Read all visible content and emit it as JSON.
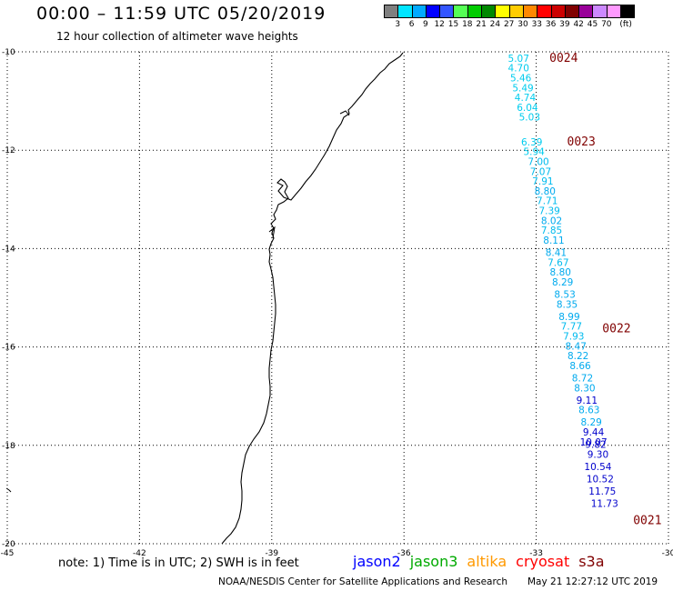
{
  "title": "00:00 – 11:59 UTC 05/20/2019",
  "subtitle": "12 hour collection of altimeter wave heights",
  "colorbar": {
    "colors": [
      "#7f7f7f",
      "#00e5ff",
      "#00aaff",
      "#0000ff",
      "#3355ff",
      "#55ff55",
      "#00cc00",
      "#008800",
      "#ffff00",
      "#ffcc00",
      "#ff8800",
      "#ff0000",
      "#cc0000",
      "#800000",
      "#990099",
      "#cc88ff",
      "#ff99ff",
      "#000000"
    ],
    "ticks": [
      "3",
      "6",
      "9",
      "12",
      "15",
      "18",
      "21",
      "24",
      "27",
      "30",
      "33",
      "36",
      "39",
      "42",
      "45",
      "70",
      "(ft)"
    ]
  },
  "map": {
    "lat_ticks": [
      "-10",
      "-12",
      "-14",
      "-16",
      "-18",
      "-20"
    ],
    "lon_ticks": [
      "-45",
      "-42",
      "-39",
      "-36",
      "-33",
      "-30"
    ],
    "lon_range": [
      -45,
      -30
    ],
    "lat_range": [
      -20,
      -10
    ],
    "gridlines": "dotted"
  },
  "pass_labels": [
    {
      "text": "0024",
      "lon": -32.7,
      "lat": -10.2
    },
    {
      "text": "0023",
      "lon": -32.3,
      "lat": -11.9
    },
    {
      "text": "0022",
      "lon": -31.5,
      "lat": -15.7
    },
    {
      "text": "0021",
      "lon": -30.8,
      "lat": -19.6
    }
  ],
  "swh_points": [
    {
      "v": "5.07",
      "lon": -33.4,
      "lat": -10.2,
      "c": "#00ccee"
    },
    {
      "v": "4.70",
      "lon": -33.4,
      "lat": -10.4,
      "c": "#00ccee"
    },
    {
      "v": "5.46",
      "lon": -33.35,
      "lat": -10.6,
      "c": "#00ccee"
    },
    {
      "v": "5.49",
      "lon": -33.3,
      "lat": -10.8,
      "c": "#00ccee"
    },
    {
      "v": "4.74",
      "lon": -33.25,
      "lat": -11.0,
      "c": "#00ccee"
    },
    {
      "v": "6.04",
      "lon": -33.2,
      "lat": -11.2,
      "c": "#00ccee"
    },
    {
      "v": "5.03",
      "lon": -33.15,
      "lat": -11.4,
      "c": "#00ccee"
    },
    {
      "v": "6.39",
      "lon": -33.1,
      "lat": -11.9,
      "c": "#00ccee"
    },
    {
      "v": "5.94",
      "lon": -33.05,
      "lat": -12.1,
      "c": "#00ccee"
    },
    {
      "v": "7.00",
      "lon": -32.95,
      "lat": -12.3,
      "c": "#00bbee"
    },
    {
      "v": "7.07",
      "lon": -32.9,
      "lat": -12.5,
      "c": "#00bbee"
    },
    {
      "v": "7.91",
      "lon": -32.85,
      "lat": -12.7,
      "c": "#00bbee"
    },
    {
      "v": "8.80",
      "lon": -32.8,
      "lat": -12.9,
      "c": "#00aaee"
    },
    {
      "v": "7.71",
      "lon": -32.75,
      "lat": -13.1,
      "c": "#00bbee"
    },
    {
      "v": "7.39",
      "lon": -32.7,
      "lat": -13.3,
      "c": "#00bbee"
    },
    {
      "v": "8.02",
      "lon": -32.65,
      "lat": -13.5,
      "c": "#00aaee"
    },
    {
      "v": "7.85",
      "lon": -32.65,
      "lat": -13.7,
      "c": "#00bbee"
    },
    {
      "v": "8.11",
      "lon": -32.6,
      "lat": -13.9,
      "c": "#00aaee"
    },
    {
      "v": "8.41",
      "lon": -32.55,
      "lat": -14.15,
      "c": "#00aaee"
    },
    {
      "v": "7.67",
      "lon": -32.5,
      "lat": -14.35,
      "c": "#00bbee"
    },
    {
      "v": "8.80",
      "lon": -32.45,
      "lat": -14.55,
      "c": "#00aaee"
    },
    {
      "v": "8.29",
      "lon": -32.4,
      "lat": -14.75,
      "c": "#00aaee"
    },
    {
      "v": "8.53",
      "lon": -32.35,
      "lat": -15.0,
      "c": "#00aaee"
    },
    {
      "v": "8.35",
      "lon": -32.3,
      "lat": -15.2,
      "c": "#00aaee"
    },
    {
      "v": "8.99",
      "lon": -32.25,
      "lat": -15.45,
      "c": "#00aaee"
    },
    {
      "v": "7.77",
      "lon": -32.2,
      "lat": -15.65,
      "c": "#00bbee"
    },
    {
      "v": "7.93",
      "lon": -32.15,
      "lat": -15.85,
      "c": "#00bbee"
    },
    {
      "v": "8.47",
      "lon": -32.1,
      "lat": -16.05,
      "c": "#00aaee"
    },
    {
      "v": "8.22",
      "lon": -32.05,
      "lat": -16.25,
      "c": "#00aaee"
    },
    {
      "v": "8.66",
      "lon": -32.0,
      "lat": -16.45,
      "c": "#00aaee"
    },
    {
      "v": "8.72",
      "lon": -31.95,
      "lat": -16.7,
      "c": "#00aaee"
    },
    {
      "v": "8.30",
      "lon": -31.9,
      "lat": -16.9,
      "c": "#00aaee"
    },
    {
      "v": "9.11",
      "lon": -31.85,
      "lat": -17.15,
      "c": "#0000cc"
    },
    {
      "v": "8.63",
      "lon": -31.8,
      "lat": -17.35,
      "c": "#00aaee"
    },
    {
      "v": "8.29",
      "lon": -31.75,
      "lat": -17.6,
      "c": "#00aaee"
    },
    {
      "v": "9.44",
      "lon": -31.7,
      "lat": -17.8,
      "c": "#0000cc"
    },
    {
      "v": "10.07",
      "lon": -31.7,
      "lat": -18.0,
      "c": "#0000cc"
    },
    {
      "v": "9.82",
      "lon": -31.65,
      "lat": -18.05,
      "c": "#0000cc"
    },
    {
      "v": "9.30",
      "lon": -31.6,
      "lat": -18.25,
      "c": "#0000cc"
    },
    {
      "v": "10.54",
      "lon": -31.6,
      "lat": -18.5,
      "c": "#0000cc"
    },
    {
      "v": "10.52",
      "lon": -31.55,
      "lat": -18.75,
      "c": "#0000cc"
    },
    {
      "v": "11.75",
      "lon": -31.5,
      "lat": -19.0,
      "c": "#0000cc"
    },
    {
      "v": "11.73",
      "lon": -31.45,
      "lat": -19.25,
      "c": "#0000cc"
    }
  ],
  "note": "note: 1) Time is in UTC; 2) SWH is in feet",
  "legend": [
    {
      "label": "jason2",
      "color": "#0000ff"
    },
    {
      "label": "jason3",
      "color": "#00aa00"
    },
    {
      "label": "altika",
      "color": "#ff9900"
    },
    {
      "label": "cryosat",
      "color": "#ff0000"
    },
    {
      "label": "s3a",
      "color": "#800000"
    }
  ],
  "credit": "NOAA/NESDIS Center for Satellite Applications and Research",
  "timestamp": "May 21 12:27:12 UTC 2019"
}
